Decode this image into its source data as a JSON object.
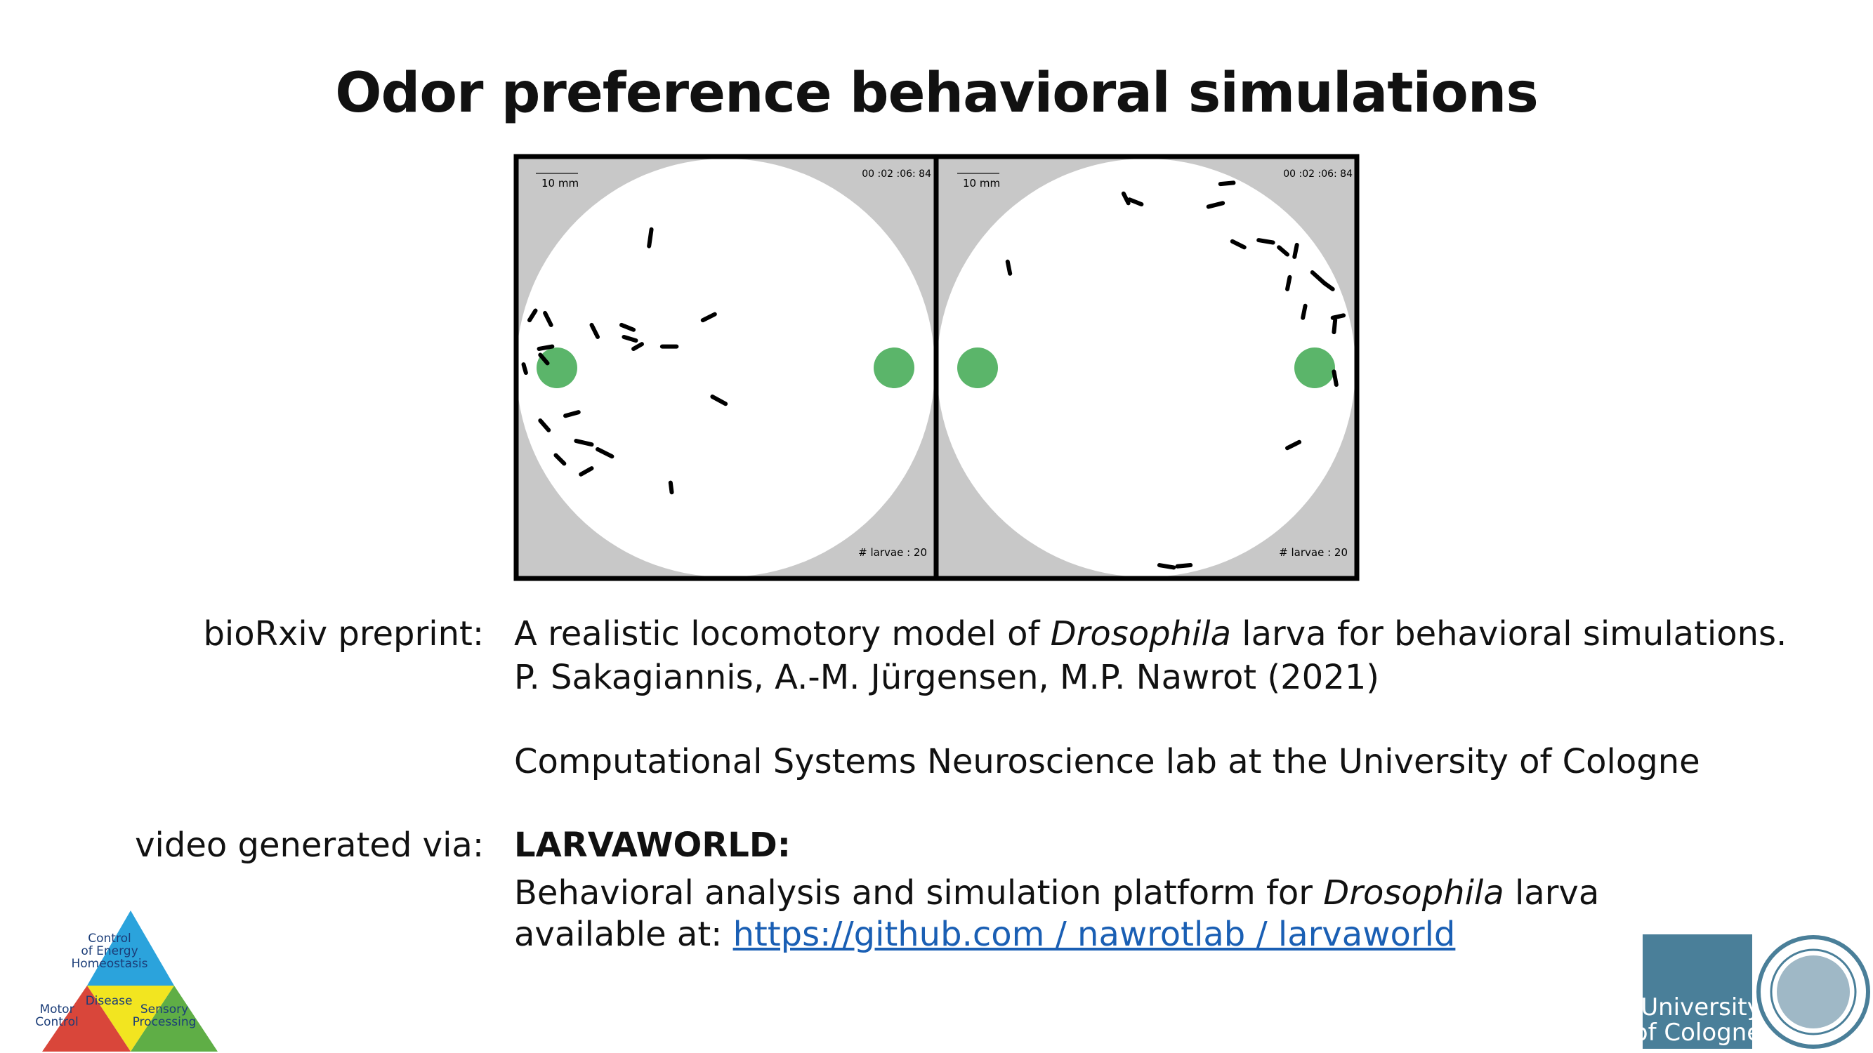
{
  "title": "Odor preference behavioral simulations",
  "simulation": {
    "panels": [
      {
        "scale_bar": "10 mm",
        "timer": "00 :02 :06: 84",
        "count": "# larvae : 20"
      },
      {
        "scale_bar": "10 mm",
        "timer": "00 :02 :06: 84",
        "count": "# larvae : 20"
      }
    ]
  },
  "preprint": {
    "label": "bioRxiv preprint:",
    "paper_title": [
      "A realistic locomotory model of ",
      "Drosophila",
      " larva for behavioral simulations."
    ],
    "authors": "P. Sakagiannis, A.-M. Jürgensen, M.P. Nawrot (2021)",
    "affiliation": "Computational Systems Neuroscience lab at the University of Cologne"
  },
  "video": {
    "label": "video generated via:",
    "tool": "LARVAWORLD:",
    "description": [
      "Behavioral analysis and simulation platform for ",
      "Drosophila",
      " larva"
    ],
    "availability": "available at: ",
    "link": "https://github.com / nawrotlab / larvaworld"
  },
  "logos": {
    "triangle": {
      "top": [
        "Control",
        "of Energy",
        "Homeostasis"
      ],
      "center": "Disease",
      "left": [
        "Motor",
        "Control"
      ],
      "right": [
        "Sensory",
        "Processing"
      ]
    },
    "university": [
      "University",
      "of Cologne"
    ]
  }
}
